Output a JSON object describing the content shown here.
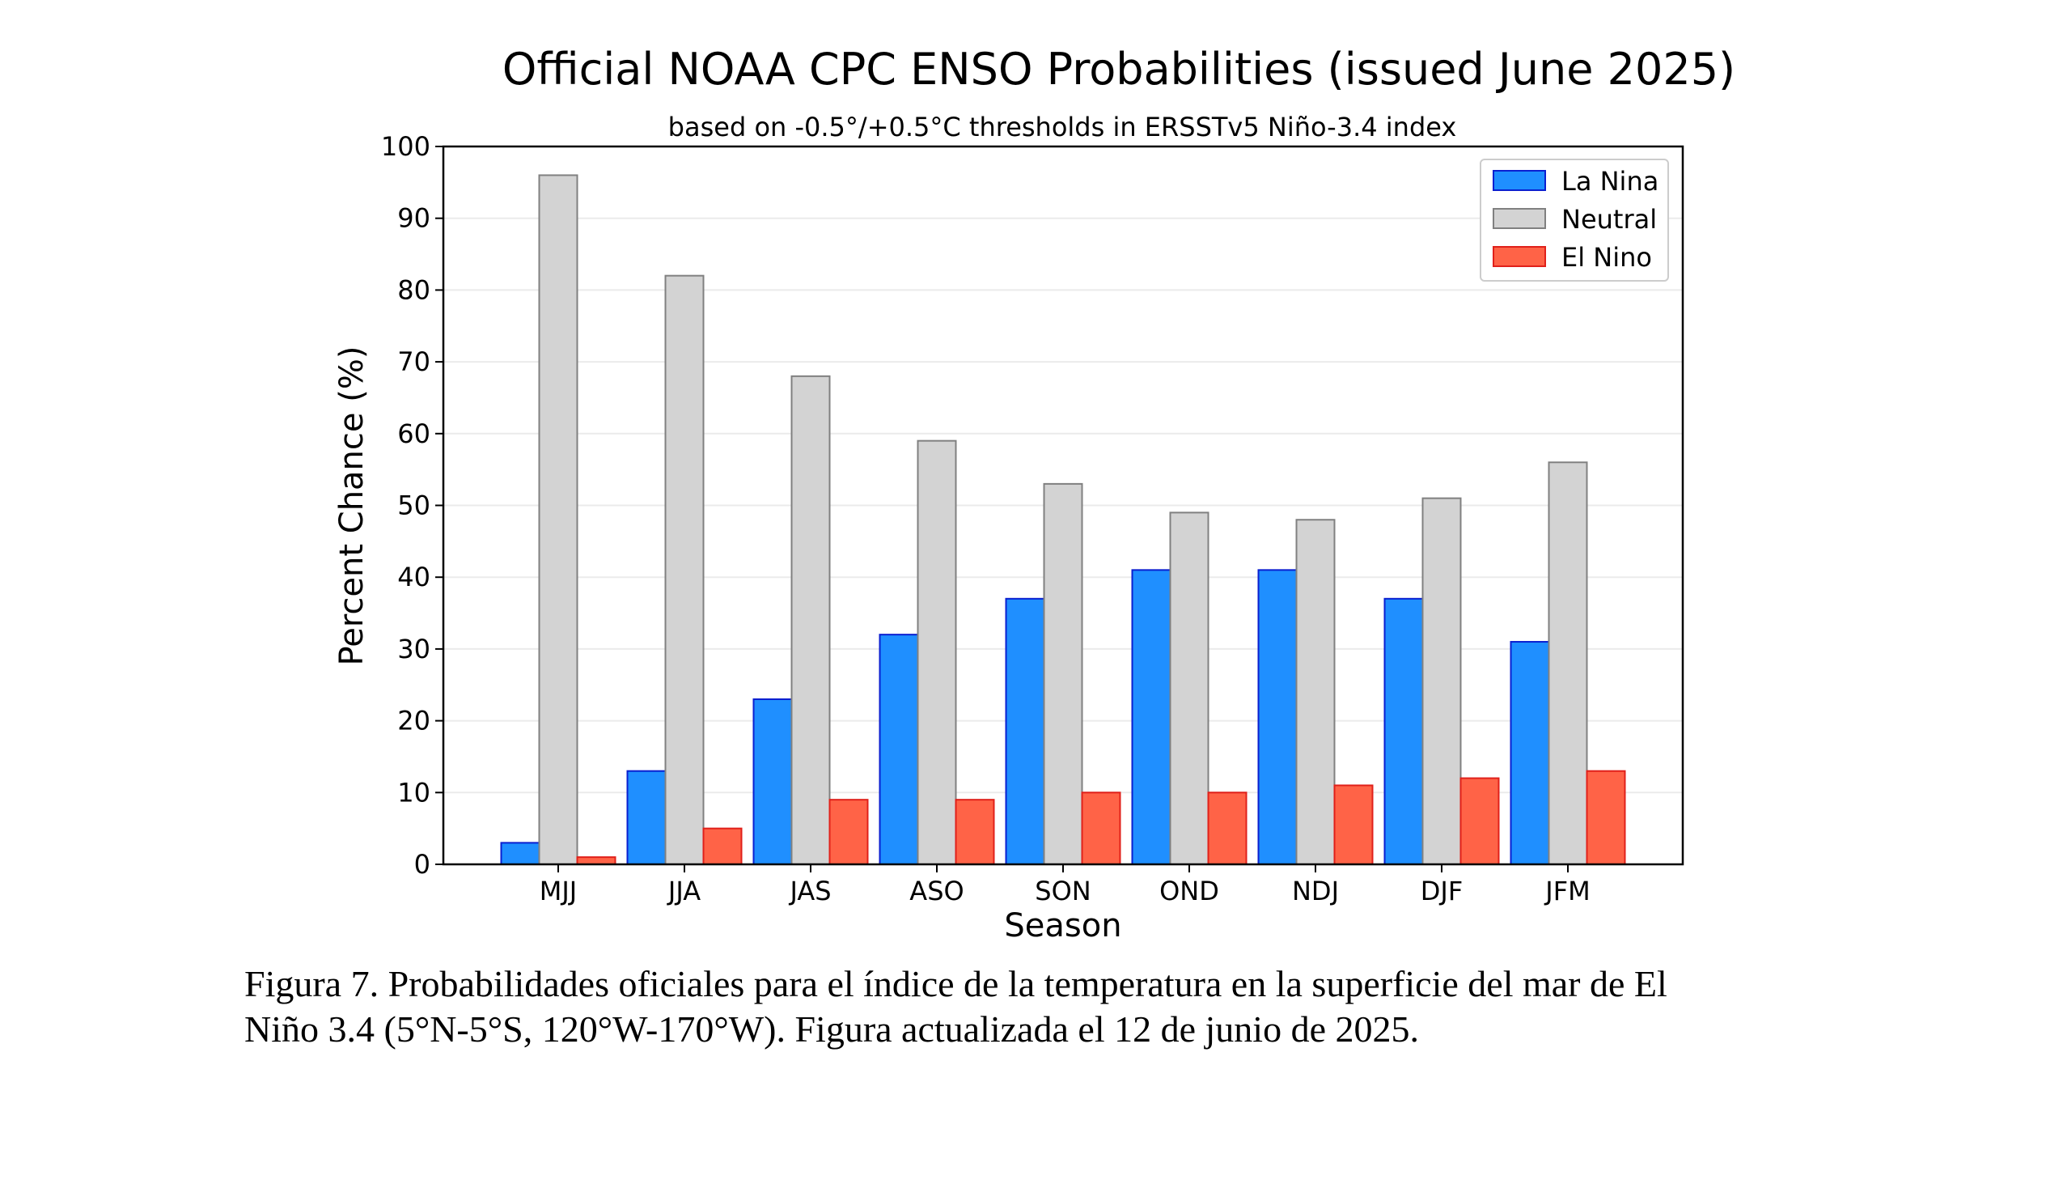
{
  "chart_data": {
    "type": "bar",
    "title": "Official NOAA CPC ENSO Probabilities (issued June 2025)",
    "subtitle": "based on -0.5°/+0.5°C thresholds in ERSSTv5 Niño-3.4 index",
    "xlabel": "Season",
    "ylabel": "Percent Chance (%)",
    "ylim": [
      0,
      100
    ],
    "yticks": [
      0,
      10,
      20,
      30,
      40,
      50,
      60,
      70,
      80,
      90,
      100
    ],
    "grid": true,
    "legend_position": "top-right",
    "categories": [
      "MJJ",
      "JJA",
      "JAS",
      "ASO",
      "SON",
      "OND",
      "NDJ",
      "DJF",
      "JFM"
    ],
    "series": [
      {
        "name": "La Nina",
        "color": "#1f8fff",
        "edge": "#0a1fd0",
        "values": [
          3,
          13,
          23,
          32,
          37,
          41,
          41,
          37,
          31
        ]
      },
      {
        "name": "Neutral",
        "color": "#d3d3d3",
        "edge": "#808080",
        "values": [
          96,
          82,
          68,
          59,
          53,
          49,
          48,
          51,
          56
        ]
      },
      {
        "name": "El Nino",
        "color": "#ff6347",
        "edge": "#e0201a",
        "values": [
          1,
          5,
          9,
          9,
          10,
          10,
          11,
          12,
          13
        ]
      }
    ]
  },
  "caption": {
    "line1": "Figura 7. Probabilidades oficiales para el índice de la temperatura en la superficie del mar de El",
    "line2": "Niño 3.4 (5°N-5°S, 120°W-170°W). Figura actualizada el 12 de junio de 2025."
  }
}
